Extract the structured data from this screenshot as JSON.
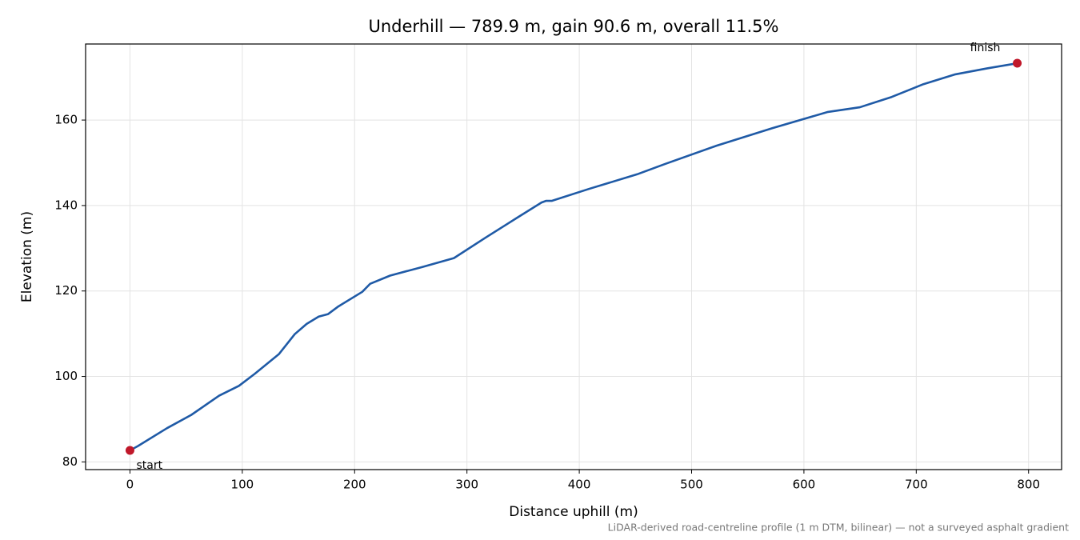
{
  "chart_data": {
    "type": "line",
    "title": "Underhill — 789.9 m, gain 90.6 m, overall 11.5%",
    "x_label": "Distance uphill (m)",
    "y_label": "Elevation (m)",
    "footnote": "LiDAR-derived road-centreline profile (1 m DTM, bilinear) — not a surveyed asphalt gradient",
    "start_label": "start",
    "finish_label": "finish",
    "x": [
      0,
      7,
      33,
      54.6,
      79.4,
      97,
      111,
      132.5,
      146.7,
      157.3,
      168,
      176.4,
      185.6,
      206.8,
      213.9,
      231.6,
      260,
      288.4,
      316.7,
      345,
      366.4,
      370.6,
      375.7,
      408.8,
      451.4,
      476.2,
      522.2,
      571.8,
      621.4,
      649.8,
      678.1,
      706.4,
      734.8,
      763.2,
      789.9
    ],
    "values": [
      82.7,
      83.7,
      87.9,
      91.0,
      95.5,
      97.8,
      100.6,
      105.2,
      109.9,
      112.3,
      114.0,
      114.6,
      116.4,
      119.8,
      121.7,
      123.6,
      125.6,
      127.7,
      132.5,
      137.2,
      140.7,
      141.1,
      141.1,
      143.9,
      147.3,
      149.7,
      154.0,
      158.1,
      161.9,
      163.0,
      165.4,
      168.4,
      170.7,
      172.1,
      173.3
    ],
    "color": "#1f5aa6",
    "marker_color": "#c0182a",
    "xlim": [
      -39.5,
      829.4
    ],
    "ylim": [
      78.2,
      177.8
    ],
    "xticks": [
      0,
      100,
      200,
      300,
      400,
      500,
      600,
      700,
      800
    ],
    "yticks": [
      80,
      100,
      120,
      140,
      160
    ],
    "grid": true
  }
}
